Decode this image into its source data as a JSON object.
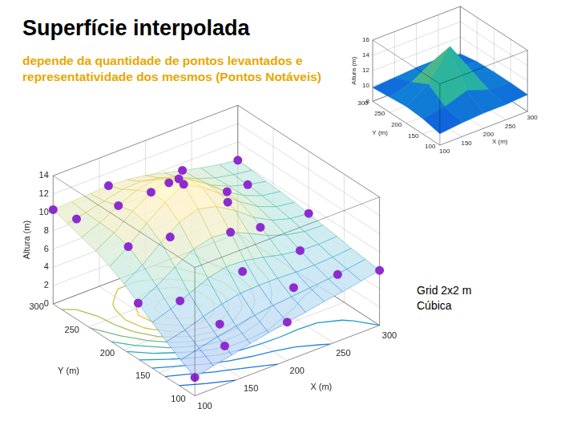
{
  "title": "Superfície interpolada",
  "subtitle": "depende da quantidade de pontos levantados e representatividade dos mesmos (Pontos Notáveis)",
  "annotation": [
    "Grid 2x2 m",
    "Cúbica"
  ],
  "chart_data": [
    {
      "type": "mesh",
      "x_label": "X (m)",
      "y_label": "Y (m)",
      "z_label": "Altura (m)",
      "xlim": [
        100,
        300
      ],
      "ylim": [
        100,
        300
      ],
      "zlim": [
        0,
        14
      ],
      "xticks": [
        100,
        150,
        200,
        250,
        300
      ],
      "yticks": [
        100,
        150,
        200,
        250,
        300
      ],
      "zticks": [
        0,
        2,
        4,
        6,
        8,
        10,
        12,
        14
      ],
      "grid": true,
      "x": [
        100,
        120,
        140,
        160,
        180,
        200,
        220,
        240,
        260,
        280,
        300
      ],
      "y": [
        100,
        120,
        140,
        160,
        180,
        200,
        220,
        240,
        260,
        280,
        300
      ],
      "z": [
        [
          2.0,
          2.5,
          2.9,
          3.4,
          3.8,
          4.2,
          4.5,
          4.9,
          5.2,
          5.6,
          6.0
        ],
        [
          2.9,
          3.4,
          3.9,
          4.3,
          4.7,
          5.0,
          5.2,
          5.4,
          5.6,
          5.9,
          6.2
        ],
        [
          3.9,
          4.4,
          5.1,
          5.7,
          6.1,
          6.2,
          6.2,
          6.1,
          6.1,
          6.2,
          6.4
        ],
        [
          5.0,
          5.7,
          6.6,
          7.5,
          8.0,
          7.9,
          7.5,
          7.0,
          6.7,
          6.6,
          6.7
        ],
        [
          6.1,
          7.2,
          8.5,
          9.7,
          10.2,
          10.0,
          9.1,
          8.1,
          7.4,
          7.0,
          6.9
        ],
        [
          7.2,
          8.5,
          10.2,
          11.6,
          12.3,
          11.8,
          10.6,
          9.1,
          8.0,
          7.4,
          7.2
        ],
        [
          8.1,
          9.5,
          11.3,
          12.8,
          14.0,
          12.9,
          11.4,
          9.8,
          8.5,
          7.7,
          7.4
        ],
        [
          8.8,
          10.0,
          11.6,
          12.9,
          13.6,
          12.8,
          11.5,
          9.9,
          8.7,
          7.9,
          7.6
        ],
        [
          9.3,
          10.1,
          11.2,
          12.1,
          12.5,
          12.0,
          10.9,
          9.6,
          8.7,
          8.1,
          7.7
        ],
        [
          9.8,
          10.2,
          10.7,
          11.2,
          11.3,
          10.9,
          10.2,
          9.3,
          8.6,
          8.2,
          7.9
        ],
        [
          10.3,
          10.4,
          10.5,
          10.6,
          10.5,
          10.2,
          9.7,
          9.2,
          8.7,
          8.3,
          8.0
        ]
      ],
      "contour_levels": [
        3,
        4,
        5,
        6,
        7,
        8,
        9,
        10,
        11,
        12,
        13
      ],
      "points": {
        "x": [
          100,
          100,
          100,
          160,
          240,
          300,
          300,
          300,
          200,
          150,
          180,
          190,
          200,
          160,
          220,
          140,
          250,
          260,
          230,
          120,
          130,
          280,
          210,
          150,
          240,
          110,
          270,
          190,
          140
        ],
        "y": [
          100,
          180,
          300,
          300,
          300,
          300,
          200,
          100,
          100,
          130,
          220,
          240,
          180,
          240,
          210,
          260,
          250,
          160,
          130,
          220,
          160,
          260,
          280,
          200,
          190,
          280,
          120,
          150,
          110
        ],
        "z": [
          2.0,
          6.1,
          10.3,
          10.6,
          9.2,
          8.0,
          7.2,
          6.0,
          4.2,
          4.4,
          14.0,
          13.2,
          10.0,
          12.9,
          11.0,
          11.2,
          9.0,
          6.7,
          5.3,
          9.5,
          6.2,
          8.1,
          10.0,
          10.4,
          8.5,
          9.9,
          5.7,
          7.6,
          3.4
        ],
        "color": "#8e2bd0",
        "marker": "circle"
      }
    },
    {
      "type": "surface",
      "x_label": "X (m)",
      "y_label": "Y (m)",
      "z_label": "Altura (m)",
      "xlim": [
        100,
        300
      ],
      "ylim": [
        100,
        300
      ],
      "zlim": [
        8,
        16
      ],
      "xticks": [
        100,
        150,
        200,
        250,
        300
      ],
      "yticks": [
        100,
        150,
        200,
        250,
        300
      ],
      "zticks": [
        8,
        10,
        12,
        14,
        16
      ],
      "grid": true,
      "x": [
        100,
        150,
        200,
        250,
        300
      ],
      "y": [
        100,
        150,
        200,
        250,
        300
      ],
      "z": [
        [
          9.5,
          9.8,
          10.0,
          10.0,
          10.2
        ],
        [
          10.0,
          10.5,
          11.5,
          10.5,
          10.3
        ],
        [
          10.2,
          12.0,
          15.8,
          11.5,
          10.3
        ],
        [
          10.0,
          10.8,
          12.5,
          10.6,
          10.2
        ],
        [
          9.8,
          10.0,
          10.2,
          10.0,
          9.8
        ]
      ]
    }
  ]
}
